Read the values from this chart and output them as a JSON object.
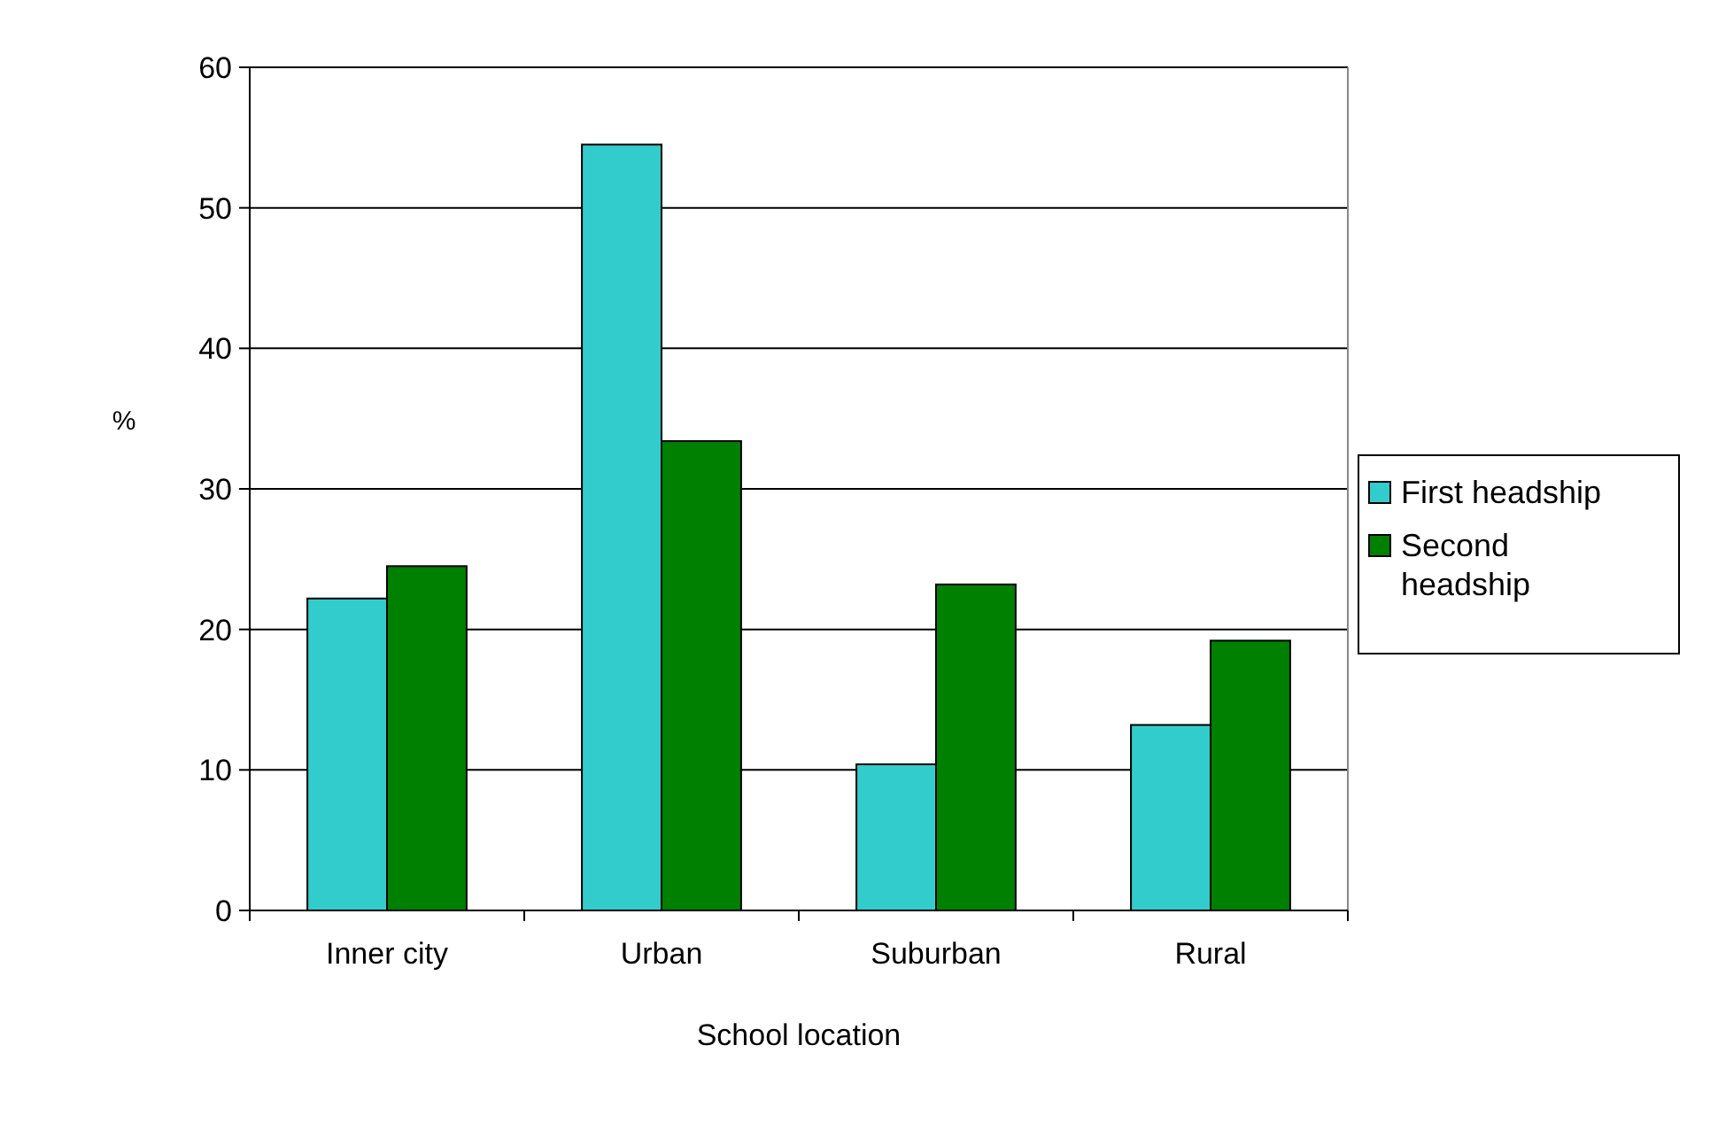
{
  "chart_data": {
    "type": "bar",
    "xlabel": "School location",
    "ylabel": "%",
    "categories": [
      "Inner city",
      "Urban",
      "Suburban",
      "Rural"
    ],
    "series": [
      {
        "name": "First headship",
        "color": "#33cccc",
        "values": [
          22.2,
          54.5,
          10.4,
          13.2
        ]
      },
      {
        "name": "Second headship",
        "color": "#008000",
        "values": [
          24.5,
          33.4,
          23.2,
          19.2
        ]
      }
    ],
    "ylim": [
      0,
      60
    ],
    "yticks": [
      0,
      10,
      20,
      30,
      40,
      50,
      60
    ],
    "grid": "y",
    "legend": "right"
  }
}
